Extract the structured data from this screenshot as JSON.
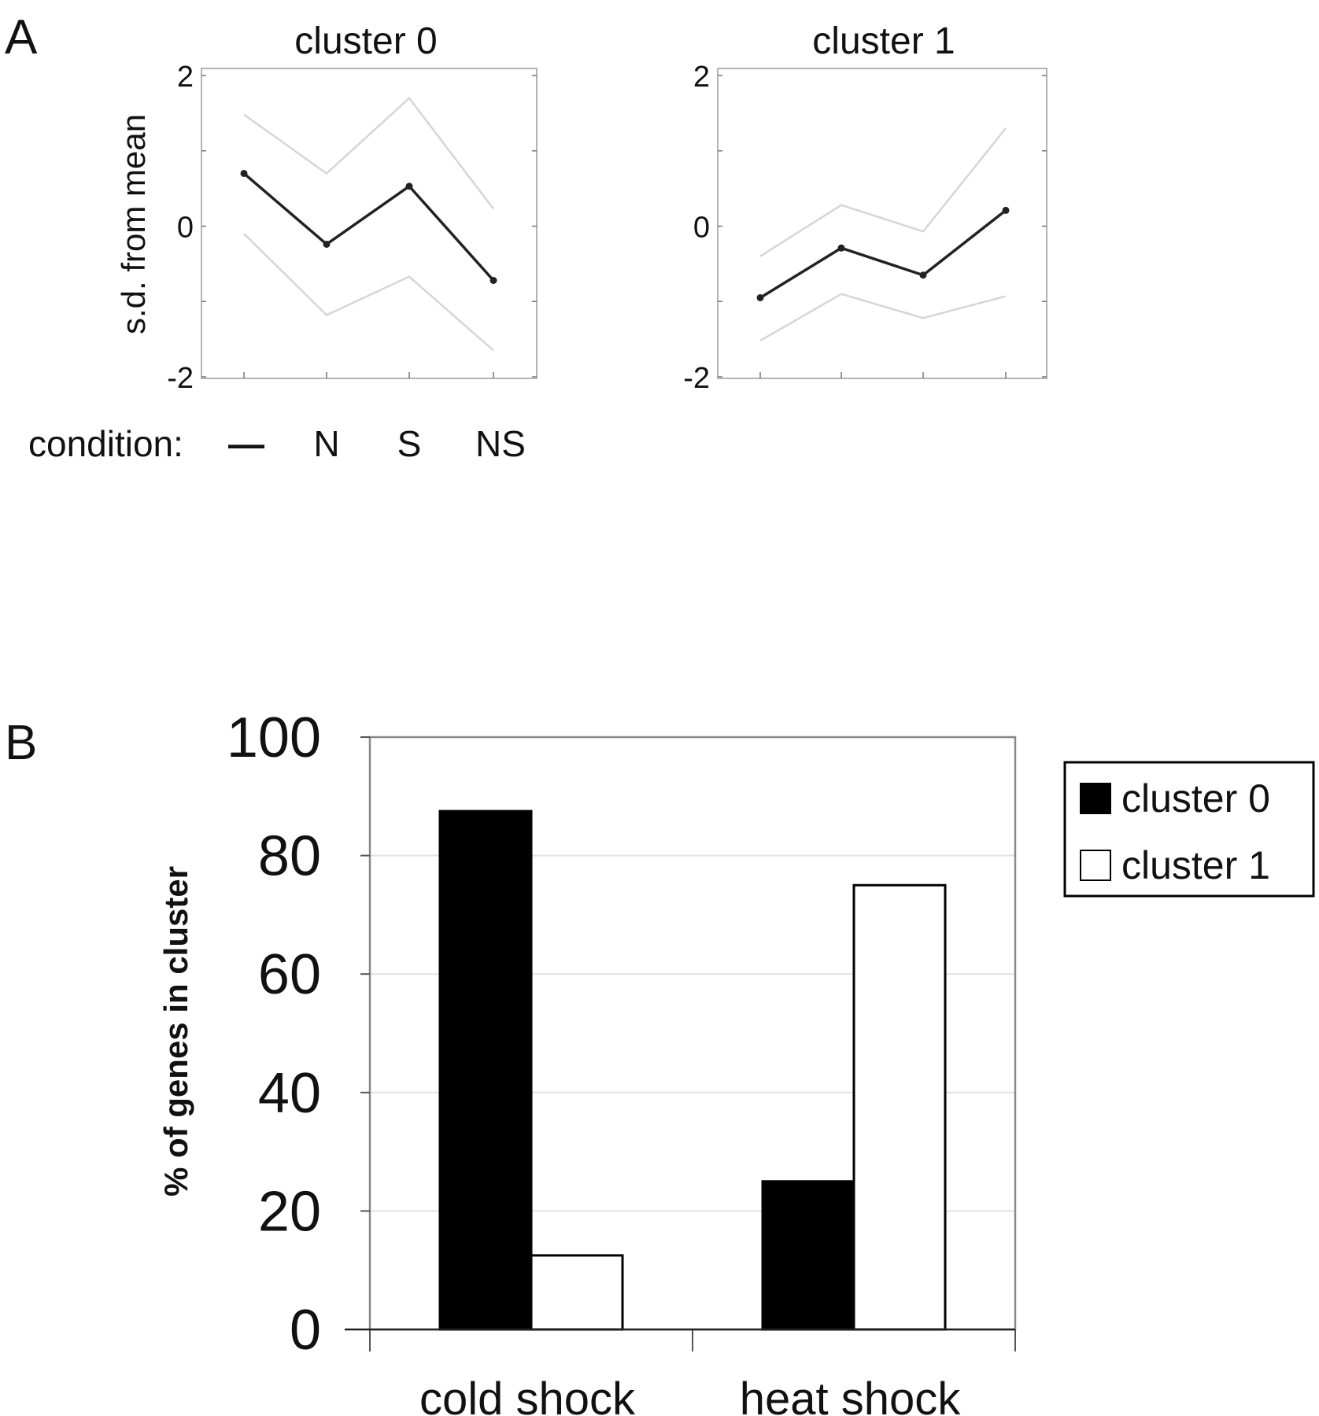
{
  "panel_a": {
    "label": "A",
    "xlabel_prefix": "condition:",
    "ylabel": "s.d. from mean",
    "conditions": [
      "—",
      "N",
      "S",
      "NS"
    ]
  },
  "panel_b": {
    "label": "B",
    "ylabel": "% of genes in cluster"
  },
  "colors": {
    "mean_line": "#222222",
    "band_line": "#d6d6d6",
    "bar_cluster0": "#000000",
    "bar_cluster1": "#ffffff",
    "gridline": "#e2e2e2",
    "frame": "#888888"
  },
  "chart_data": [
    {
      "type": "line",
      "title": "cluster 0",
      "xlabel": "condition:",
      "ylabel": "s.d. from mean",
      "x": [
        "—",
        "N",
        "S",
        "NS"
      ],
      "ylim": [
        -2,
        2
      ],
      "yticks": [
        -2,
        0,
        2
      ],
      "yticklabels": [
        "-2",
        "0",
        "2"
      ],
      "grid": false,
      "series": [
        {
          "role": "mean",
          "values": [
            0.7,
            -0.24,
            0.53,
            -0.72
          ]
        },
        {
          "role": "upper",
          "values": [
            1.48,
            0.7,
            1.7,
            0.23
          ]
        },
        {
          "role": "lower",
          "values": [
            -0.1,
            -1.18,
            -0.67,
            -1.65
          ]
        }
      ]
    },
    {
      "type": "line",
      "title": "cluster 1",
      "xlabel": "condition:",
      "ylabel": "s.d. from mean",
      "x": [
        "—",
        "N",
        "S",
        "NS"
      ],
      "ylim": [
        -2,
        2
      ],
      "yticks": [
        -2,
        0,
        2
      ],
      "yticklabels": [
        "-2",
        "0",
        "2"
      ],
      "grid": false,
      "series": [
        {
          "role": "mean",
          "values": [
            -0.95,
            -0.29,
            -0.65,
            0.21
          ]
        },
        {
          "role": "upper",
          "values": [
            -0.4,
            0.28,
            -0.07,
            1.3
          ]
        },
        {
          "role": "lower",
          "values": [
            -1.52,
            -0.9,
            -1.22,
            -0.93
          ]
        }
      ]
    },
    {
      "type": "bar",
      "title": "",
      "xlabel": "",
      "ylabel": "% of genes in cluster",
      "categories": [
        "cold shock",
        "heat shock"
      ],
      "ylim": [
        0,
        100
      ],
      "yticks": [
        0,
        20,
        40,
        60,
        80,
        100
      ],
      "yticklabels": [
        "0",
        "20",
        "40",
        "60",
        "80",
        "100"
      ],
      "grid": true,
      "legend_position": "right",
      "series": [
        {
          "name": "cluster 0",
          "values": [
            87.5,
            25
          ]
        },
        {
          "name": "cluster 1",
          "values": [
            12.5,
            75
          ]
        }
      ]
    }
  ]
}
